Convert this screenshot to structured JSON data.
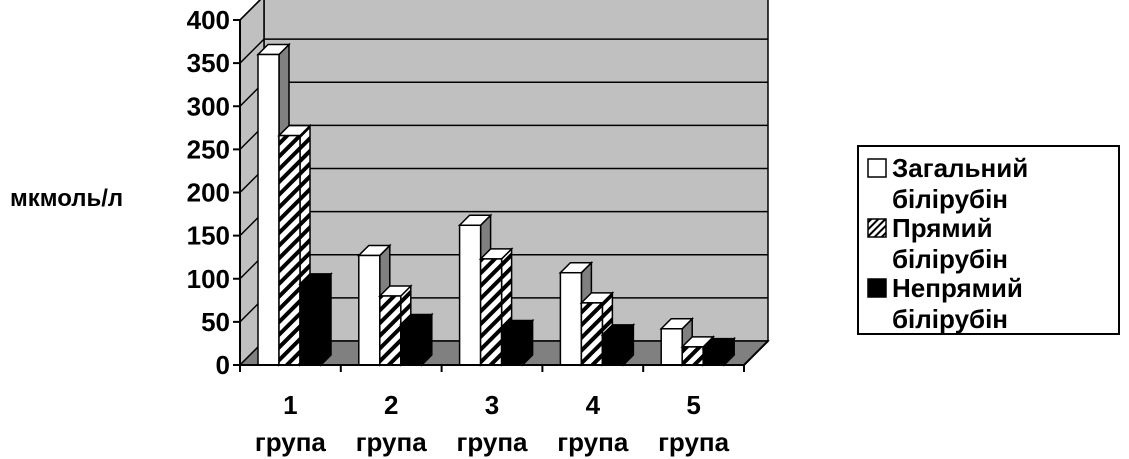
{
  "chart_data": {
    "type": "bar",
    "categories": [
      "1",
      "2",
      "3",
      "4",
      "5"
    ],
    "category_sublabel": "група",
    "ylabel": "мкмоль/л",
    "ylim": [
      0,
      400
    ],
    "yticks": [
      "0",
      "50",
      "100",
      "150",
      "200",
      "250",
      "300",
      "350",
      "400"
    ],
    "grid": true,
    "style": "3d-clustered",
    "legend_position": "right",
    "series": [
      {
        "name": "Загальний білірубін",
        "name_lines": [
          "Загальний",
          "білірубін"
        ],
        "values": [
          360,
          127,
          162,
          107,
          42
        ],
        "pattern": "white"
      },
      {
        "name": "Прямий білірубін",
        "name_lines": [
          "Прямий",
          "білірубін"
        ],
        "values": [
          266,
          80,
          123,
          72,
          21
        ],
        "pattern": "hatch"
      },
      {
        "name": "Непрямий білірубін",
        "name_lines": [
          "Непрямий",
          "білірубін"
        ],
        "values": [
          94,
          47,
          40,
          35,
          19
        ],
        "pattern": "black"
      }
    ],
    "colors": {
      "wall": "#c0c0c0",
      "floor": "#808080",
      "bar_black": "#000000",
      "bar_white": "#ffffff"
    }
  }
}
